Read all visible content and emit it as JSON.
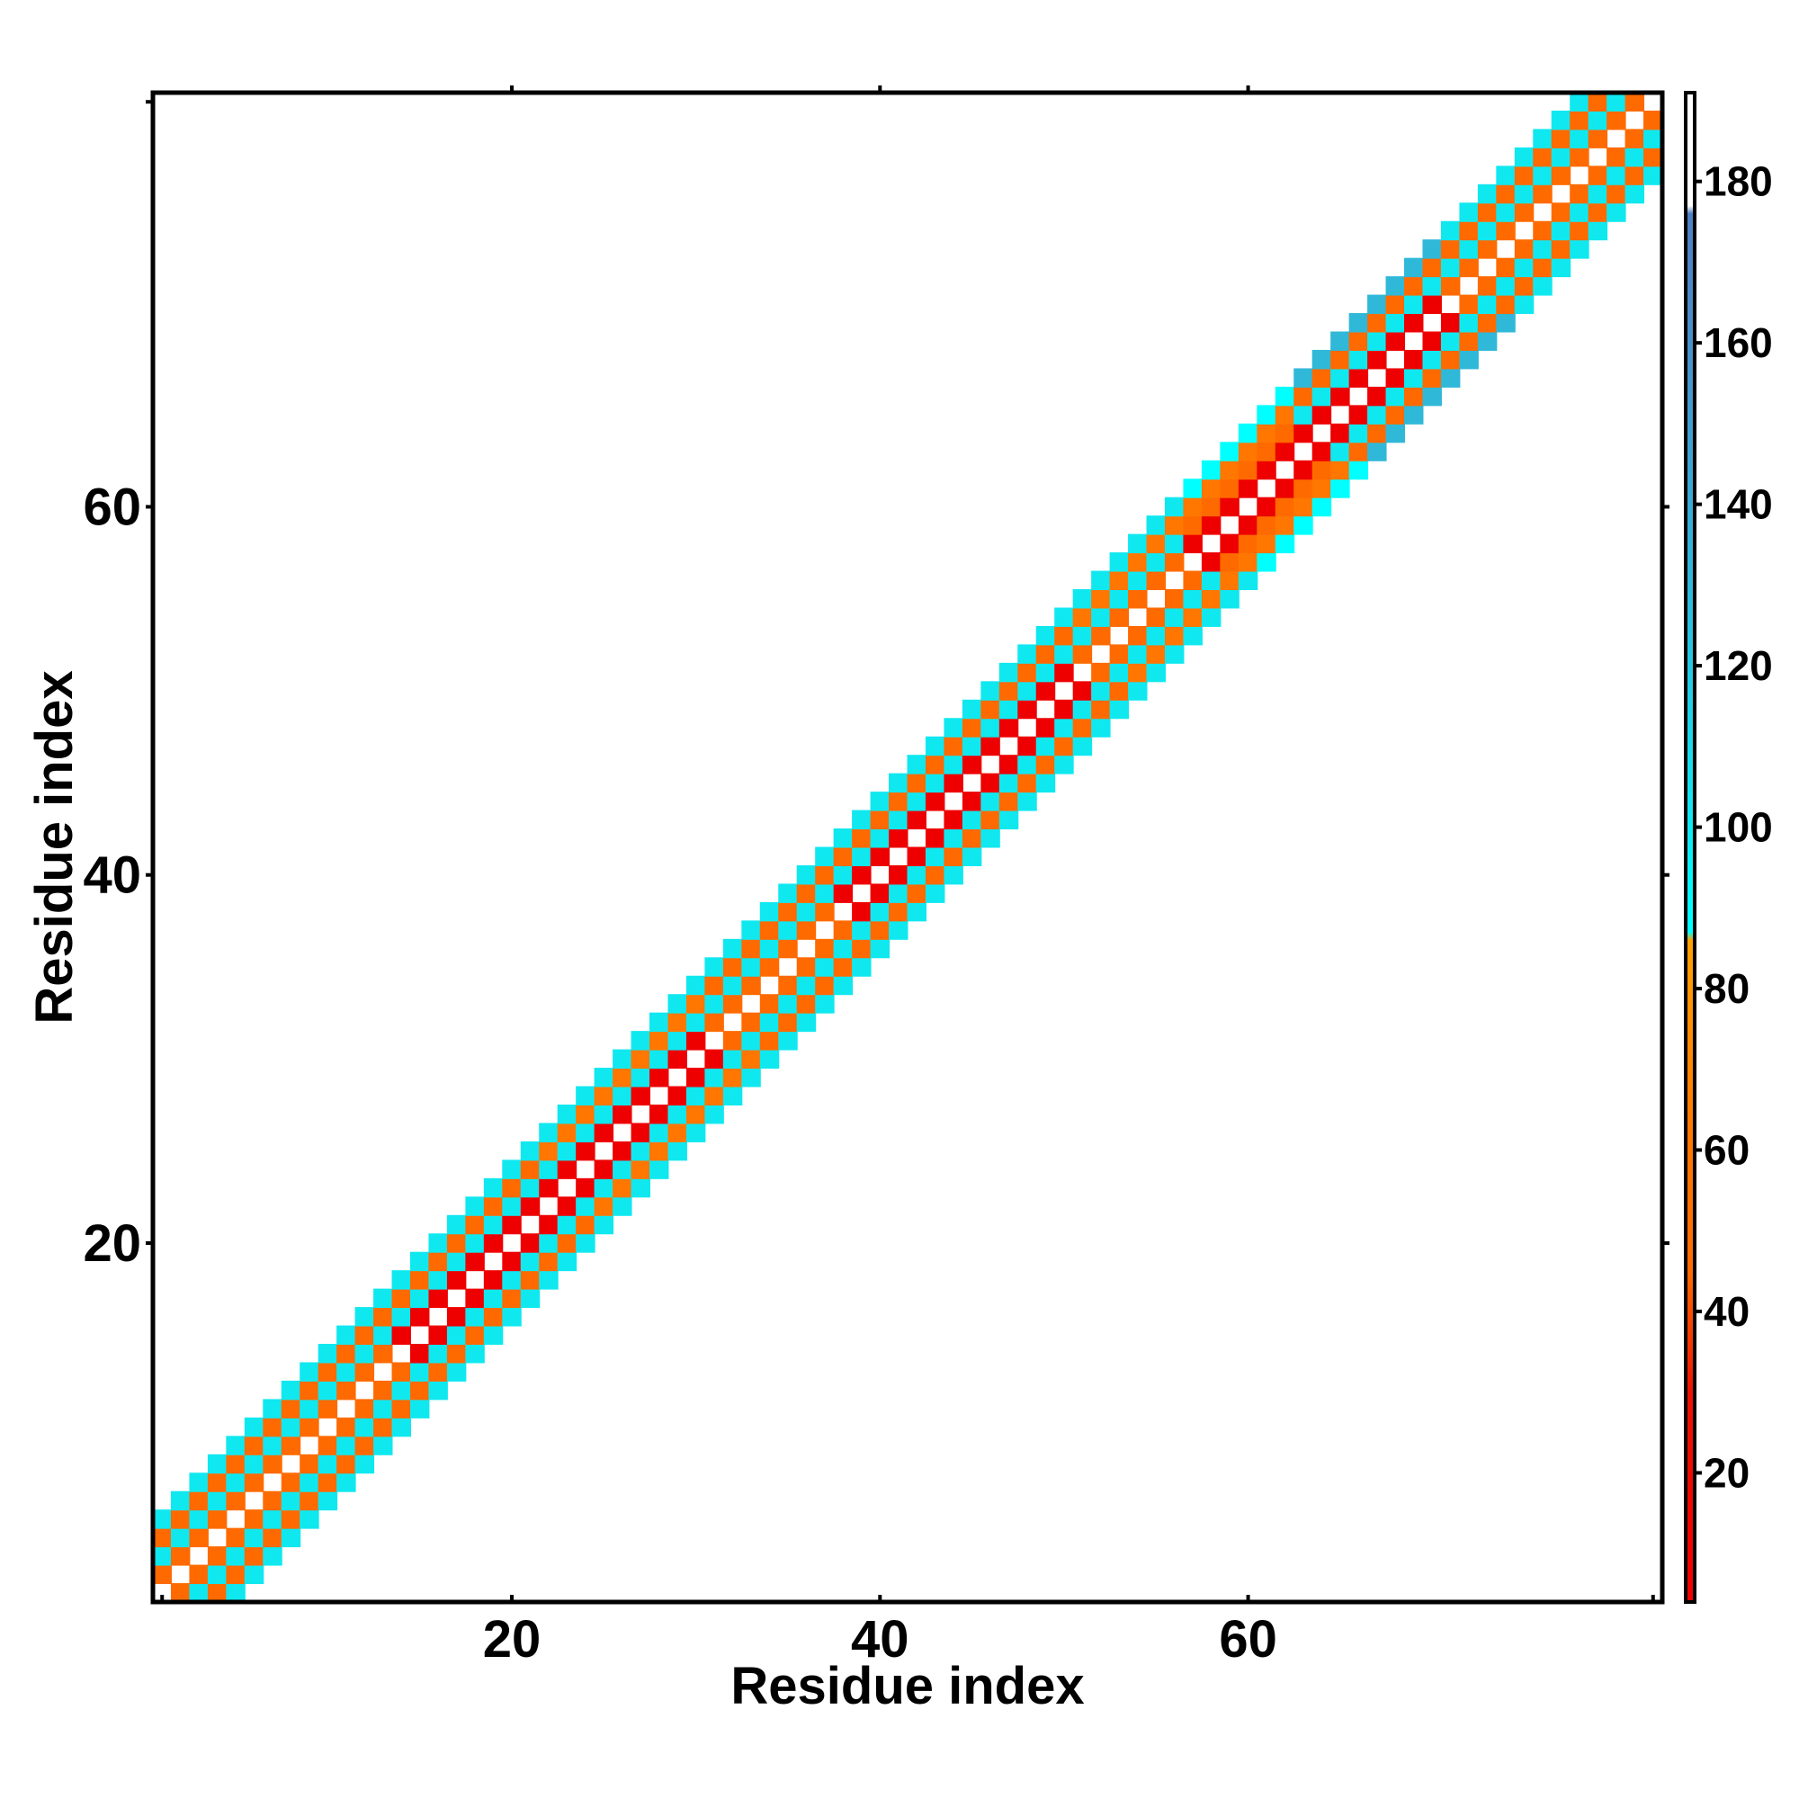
{
  "chart_data": {
    "type": "heatmap",
    "xlabel": "Residue index",
    "ylabel": "Residue index",
    "xlim": [
      1,
      82
    ],
    "ylim": [
      1,
      82
    ],
    "x_ticks": [
      20,
      40,
      60
    ],
    "y_ticks": [
      20,
      40,
      60
    ],
    "colorbar": {
      "range": [
        4,
        191
      ],
      "ticks": [
        20,
        40,
        60,
        80,
        100,
        120,
        140,
        160,
        180
      ],
      "stops": [
        {
          "value": 4,
          "color": "#ee0000"
        },
        {
          "value": 30,
          "color": "#ee1100"
        },
        {
          "value": 45,
          "color": "#ff6a00"
        },
        {
          "value": 62,
          "color": "#ff7700"
        },
        {
          "value": 86,
          "color": "#ffa000"
        },
        {
          "value": 87,
          "color": "#00ffff"
        },
        {
          "value": 100,
          "color": "#10e8f0"
        },
        {
          "value": 130,
          "color": "#30b8d8"
        },
        {
          "value": 160,
          "color": "#4a90c8"
        },
        {
          "value": 176,
          "color": "#4f7fc2"
        },
        {
          "value": 177,
          "color": "#ffffff"
        },
        {
          "value": 191,
          "color": "#ffffff"
        }
      ]
    },
    "diagonal_value": null,
    "segments": [
      {
        "from": 1,
        "to": 14,
        "neighbor_values": [
          45,
          100,
          60,
          110
        ]
      },
      {
        "from": 14,
        "to": 22,
        "neighbor_values": [
          20,
          105,
          58,
          100
        ]
      },
      {
        "from": 22,
        "to": 31,
        "neighbor_values": [
          15,
          120,
          65,
          110
        ]
      },
      {
        "from": 31,
        "to": 38,
        "neighbor_values": [
          60,
          125,
          55,
          118
        ]
      },
      {
        "from": 38,
        "to": 51,
        "neighbor_values": [
          20,
          100,
          55,
          100
        ]
      },
      {
        "from": 51,
        "to": 57,
        "neighbor_values": [
          50,
          125,
          75,
          120
        ]
      },
      {
        "from": 57,
        "to": 63,
        "neighbor_values": [
          15,
          60,
          80,
          95
        ]
      },
      {
        "from": 63,
        "to": 71,
        "neighbor_values": [
          15,
          110,
          60,
          135
        ]
      },
      {
        "from": 71,
        "to": 82,
        "neighbor_values": [
          55,
          100,
          60,
          105
        ]
      }
    ]
  }
}
